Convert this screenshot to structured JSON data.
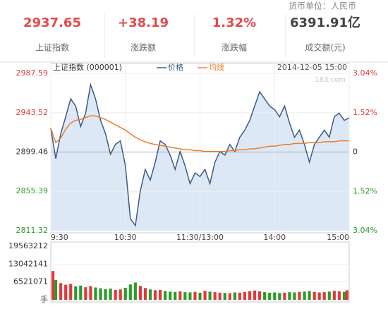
{
  "summary": {
    "currency_note": "货币单位：人民币",
    "stats": [
      {
        "value": "2937.65",
        "label": "上证指数"
      },
      {
        "value": "+38.19",
        "label": "涨跌额"
      },
      {
        "value": "1.32%",
        "label": "涨跌幅"
      },
      {
        "value": "6391.91亿",
        "label": "成交额(元)"
      }
    ]
  },
  "chart_data": [
    {
      "type": "line",
      "title": "上证指数 (000001)",
      "timestamp": "2014-12-05 15:00",
      "watermark": "163.com",
      "up_color": "#e03a3a",
      "down_color": "#2c9a2c",
      "flat_color": "#333333",
      "area_color": "#dde8f7",
      "x": [
        0,
        4,
        8,
        12,
        16,
        20,
        24,
        28,
        32,
        36,
        40,
        44,
        48,
        52,
        56,
        60,
        64,
        68,
        72,
        76,
        80,
        84,
        88,
        92,
        96,
        100,
        104,
        108,
        112,
        116,
        120,
        124,
        128,
        132,
        136,
        140,
        144,
        148,
        152,
        156,
        160,
        164,
        168,
        172,
        176,
        180,
        184,
        188,
        192,
        196,
        200,
        204,
        208,
        212,
        216,
        220,
        224,
        228,
        232,
        236,
        240
      ],
      "xlim": [
        0,
        240
      ],
      "xticks": [
        {
          "value": 0,
          "label": "9:30"
        },
        {
          "value": 60,
          "label": "10:30"
        },
        {
          "value": 120,
          "label": "11:30/13:00"
        },
        {
          "value": 180,
          "label": "14:00"
        },
        {
          "value": 240,
          "label": "15:00"
        }
      ],
      "ylim": [
        2811.32,
        2987.59
      ],
      "yticks": [
        2987.59,
        2943.52,
        2899.46,
        2855.39,
        2811.32
      ],
      "y2lim": [
        -3.04,
        3.04
      ],
      "y2ticks": [
        {
          "value": 3.04,
          "label": "3.04%"
        },
        {
          "value": 1.52,
          "label": "1.52%"
        },
        0,
        {
          "value": -1.52,
          "label": "1.52%"
        },
        {
          "value": -3.04,
          "label": "3.04%"
        }
      ],
      "series": [
        {
          "name": "价格",
          "color": "#3d5a85",
          "values": [
            2926,
            2892,
            2920,
            2939,
            2959,
            2951,
            2928,
            2943,
            2975,
            2959,
            2935,
            2920,
            2897,
            2908,
            2912,
            2884,
            2825,
            2817,
            2856,
            2880,
            2868,
            2888,
            2912,
            2908,
            2896,
            2880,
            2900,
            2884,
            2864,
            2876,
            2872,
            2880,
            2864,
            2888,
            2900,
            2896,
            2908,
            2900,
            2916,
            2924,
            2935,
            2951,
            2967,
            2959,
            2951,
            2947,
            2939,
            2951,
            2932,
            2916,
            2924,
            2908,
            2888,
            2908,
            2916,
            2924,
            2916,
            2939,
            2943,
            2935,
            2937.65
          ]
        },
        {
          "name": "均线",
          "color": "#ef7d2a",
          "values": [
            2926,
            2910,
            2915,
            2925,
            2932,
            2935,
            2936,
            2938,
            2940,
            2940,
            2938,
            2936,
            2933,
            2930,
            2927,
            2924,
            2920,
            2916,
            2913,
            2911,
            2909,
            2908,
            2907,
            2906,
            2905,
            2904,
            2903,
            2902,
            2902,
            2901,
            2901,
            2900,
            2900,
            2900,
            2900,
            2900,
            2901,
            2901,
            2902,
            2902,
            2903,
            2903,
            2904,
            2905,
            2906,
            2906,
            2907,
            2908,
            2908,
            2909,
            2909,
            2909,
            2910,
            2910,
            2910,
            2911,
            2911,
            2911,
            2912,
            2912,
            2912
          ]
        }
      ]
    },
    {
      "type": "bar",
      "up_color": "#e03a3a",
      "down_color": "#2c9a2c",
      "ylim": [
        0,
        19563212
      ],
      "yticks": [
        {
          "value": 0,
          "label": "手"
        },
        6521071,
        13042141,
        19563212
      ],
      "values": [
        10500000,
        7200000,
        6100000,
        5500000,
        5800000,
        4900000,
        5200000,
        4600000,
        5000000,
        4500000,
        4200000,
        3900000,
        4100000,
        3600000,
        3800000,
        4400000,
        5600000,
        6300000,
        5100000,
        4300000,
        3800000,
        3500000,
        3600000,
        3200000,
        3000000,
        2900000,
        3100000,
        2800000,
        2700000,
        2900000,
        2600000,
        3300000,
        3000000,
        2800000,
        2600000,
        2500000,
        2400000,
        2700000,
        2600000,
        2900000,
        3200000,
        3400000,
        3100000,
        2800000,
        2600000,
        2700000,
        2500000,
        2600000,
        2800000,
        2700000,
        2900000,
        3000000,
        3200000,
        2900000,
        2700000,
        2800000,
        3000000,
        3300000,
        3100000,
        2900000,
        3500000
      ]
    }
  ]
}
